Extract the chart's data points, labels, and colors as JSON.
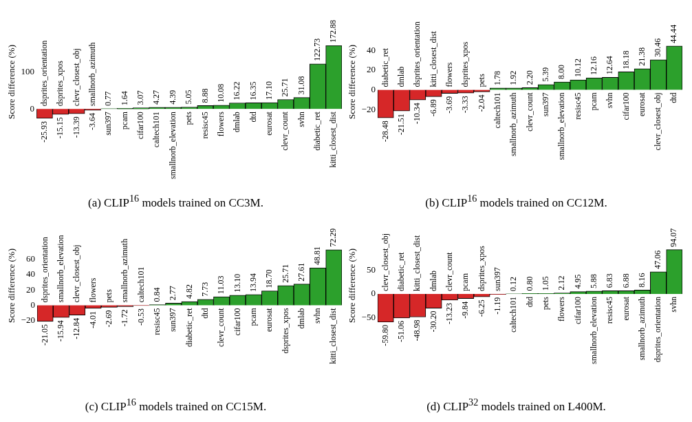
{
  "chart_data": [
    {
      "type": "bar",
      "title": "(a) CLIP$^{16}$ models trained on CC3M.",
      "ylabel": "Score difference (%)",
      "categories": [
        "dsprites_orientation",
        "dsprites_xpos",
        "clevr_closest_obj",
        "smallnorb_azimuth",
        "sun397",
        "pcam",
        "cifar100",
        "caltech101",
        "smallnorb_elevation",
        "pets",
        "resisc45",
        "flowers",
        "dmlab",
        "dtd",
        "eurosat",
        "clevr_count",
        "svhn",
        "diabetic_ret",
        "kitti_closest_dist"
      ],
      "values": [
        -25.93,
        -15.15,
        -13.39,
        -3.64,
        0.77,
        1.64,
        3.07,
        4.27,
        4.39,
        5.05,
        8.88,
        10.08,
        16.22,
        16.35,
        17.1,
        25.71,
        31.08,
        122.73,
        172.88
      ],
      "value_labels": [
        "-25.93",
        "-15.15",
        "-13.39",
        "-3.64",
        "0.77",
        "1.64",
        "3.07",
        "4.27",
        "4.39",
        "5.05",
        "8.88",
        "10.08",
        "16.22",
        "16.35",
        "17.10",
        "25.71",
        "31.08",
        "122.73",
        "172.88"
      ],
      "colors": [
        "#d62728",
        "#d62728",
        "#d62728",
        "#d62728",
        "#2ca02c",
        "#2ca02c",
        "#2ca02c",
        "#2ca02c",
        "#2ca02c",
        "#2ca02c",
        "#2ca02c",
        "#2ca02c",
        "#2ca02c",
        "#2ca02c",
        "#2ca02c",
        "#2ca02c",
        "#2ca02c",
        "#2ca02c",
        "#2ca02c"
      ],
      "ylim": [
        -26,
        173
      ],
      "yticks": [
        0,
        100
      ]
    },
    {
      "type": "bar",
      "title": "(b) CLIP$^{16}$ models trained on CC12M.",
      "ylabel": "Score difference (%)",
      "categories": [
        "diabetic_ret",
        "dmlab",
        "dsprites_orientation",
        "kitti_closest_dist",
        "flowers",
        "dsprites_xpos",
        "pets",
        "caltech101",
        "smallnorb_azimuth",
        "clevr_count",
        "sun397",
        "smallnorb_elevation",
        "resisc45",
        "pcam",
        "svhn",
        "cifar100",
        "eurosat",
        "clevr_closest_obj",
        "dtd"
      ],
      "values": [
        -28.48,
        -21.51,
        -10.34,
        -6.89,
        -3.69,
        -3.33,
        -2.04,
        1.78,
        1.92,
        2.2,
        5.39,
        8.0,
        10.12,
        12.16,
        12.64,
        18.18,
        21.38,
        30.46,
        44.44
      ],
      "value_labels": [
        "-28.48",
        "-21.51",
        "-10.34",
        "-6.89",
        "-3.69",
        "-3.33",
        "-2.04",
        "1.78",
        "1.92",
        "2.20",
        "5.39",
        "8.00",
        "10.12",
        "12.16",
        "12.64",
        "18.18",
        "21.38",
        "30.46",
        "44.44"
      ],
      "colors": [
        "#d62728",
        "#d62728",
        "#d62728",
        "#d62728",
        "#d62728",
        "#d62728",
        "#d62728",
        "#2ca02c",
        "#2ca02c",
        "#2ca02c",
        "#2ca02c",
        "#2ca02c",
        "#2ca02c",
        "#2ca02c",
        "#2ca02c",
        "#2ca02c",
        "#2ca02c",
        "#2ca02c",
        "#2ca02c"
      ],
      "ylim": [
        -29,
        45
      ],
      "yticks": [
        -20,
        0,
        20,
        40
      ]
    },
    {
      "type": "bar",
      "title": "(c) CLIP$^{16}$ models trained on CC15M.",
      "ylabel": "Score difference (%)",
      "categories": [
        "dsprites_orientation",
        "smallnorb_elevation",
        "clevr_closest_obj",
        "flowers",
        "pets",
        "smallnorb_azimuth",
        "caltech101",
        "resisc45",
        "sun397",
        "diabetic_ret",
        "dtd",
        "clevr_count",
        "cifar100",
        "pcam",
        "eurosat",
        "dsprites_xpos",
        "dmlab",
        "svhn",
        "kitti_closest_dist"
      ],
      "values": [
        -21.05,
        -15.94,
        -12.84,
        -4.01,
        -2.69,
        -1.72,
        -0.53,
        0.84,
        2.77,
        4.82,
        7.73,
        11.03,
        13.1,
        13.94,
        18.7,
        25.71,
        27.61,
        48.81,
        72.29
      ],
      "value_labels": [
        "-21.05",
        "-15.94",
        "-12.84",
        "-4.01",
        "-2.69",
        "-1.72",
        "-0.53",
        "0.84",
        "2.77",
        "4.82",
        "7.73",
        "11.03",
        "13.10",
        "13.94",
        "18.70",
        "25.71",
        "27.61",
        "48.81",
        "72.29"
      ],
      "colors": [
        "#d62728",
        "#d62728",
        "#d62728",
        "#d62728",
        "#d62728",
        "#d62728",
        "#d62728",
        "#2ca02c",
        "#2ca02c",
        "#2ca02c",
        "#2ca02c",
        "#2ca02c",
        "#2ca02c",
        "#2ca02c",
        "#2ca02c",
        "#2ca02c",
        "#2ca02c",
        "#2ca02c",
        "#2ca02c"
      ],
      "ylim": [
        -22,
        73
      ],
      "yticks": [
        -20,
        0,
        20,
        40,
        60
      ]
    },
    {
      "type": "bar",
      "title": "(d) CLIP$^{32}$ models trained on L400M.",
      "ylabel": "Score difference (%)",
      "categories": [
        "clevr_closest_obj",
        "diabetic_ret",
        "kitti_closest_dist",
        "dmlab",
        "clevr_count",
        "pcam",
        "dsprites_xpos",
        "sun397",
        "caltech101",
        "dtd",
        "pets",
        "flowers",
        "cifar100",
        "smallnorb_elevation",
        "resisc45",
        "eurosat",
        "smallnorb_azimuth",
        "dsprites_orientation",
        "svhn"
      ],
      "values": [
        -59.8,
        -51.06,
        -48.98,
        -30.2,
        -13.23,
        -9.84,
        -6.25,
        -1.19,
        0.12,
        0.8,
        1.05,
        2.12,
        4.95,
        5.88,
        6.83,
        6.88,
        8.16,
        47.06,
        94.07
      ],
      "value_labels": [
        "-59.80",
        "-51.06",
        "-48.98",
        "-30.20",
        "-13.23",
        "-9.84",
        "-6.25",
        "-1.19",
        "0.12",
        "0.80",
        "1.05",
        "2.12",
        "4.95",
        "5.88",
        "6.83",
        "6.88",
        "8.16",
        "47.06",
        "94.07"
      ],
      "colors": [
        "#d62728",
        "#d62728",
        "#d62728",
        "#d62728",
        "#d62728",
        "#d62728",
        "#d62728",
        "#d62728",
        "#2ca02c",
        "#2ca02c",
        "#2ca02c",
        "#2ca02c",
        "#2ca02c",
        "#2ca02c",
        "#2ca02c",
        "#2ca02c",
        "#2ca02c",
        "#2ca02c",
        "#2ca02c"
      ],
      "ylim": [
        -60,
        95
      ],
      "yticks": [
        -50,
        0,
        50
      ]
    }
  ]
}
